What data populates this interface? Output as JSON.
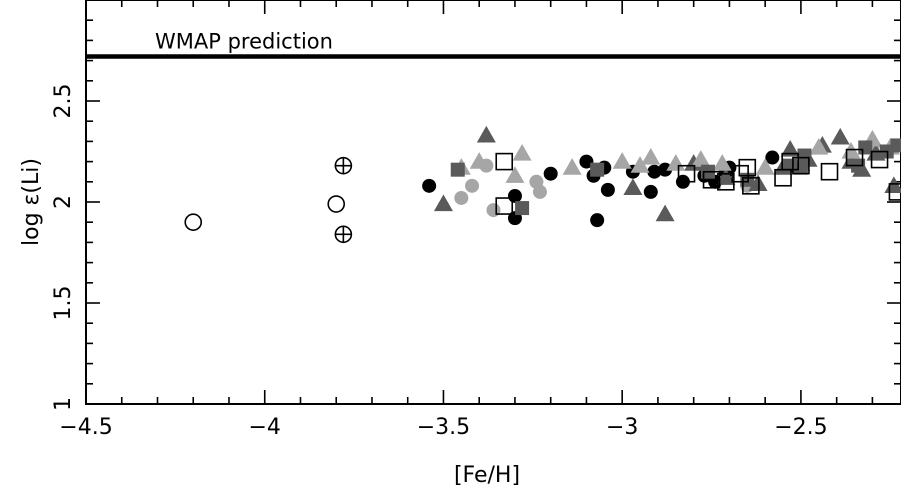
{
  "chart_data": {
    "type": "scatter",
    "xlabel": "[Fe/H]",
    "ylabel": "log ε(Li)",
    "xlim": [
      -4.5,
      -2.22
    ],
    "ylim": [
      1.0,
      3.0
    ],
    "x_ticks": [
      -4.5,
      -4,
      -3.5,
      -3,
      -2.5
    ],
    "x_tick_labels": [
      "−4.5",
      "−4",
      "−3.5",
      "−3",
      "−2.5"
    ],
    "y_ticks": [
      1,
      1.5,
      2,
      2.5
    ],
    "y_tick_labels": [
      "1",
      "1.5",
      "2",
      "2.5"
    ],
    "grid": false,
    "reference_lines": [
      {
        "y": 2.72,
        "label": "WMAP prediction"
      }
    ],
    "series": [
      {
        "marker": "filled-circle",
        "color": "#000000",
        "points": [
          [
            -3.54,
            2.08
          ],
          [
            -3.3,
            2.03
          ],
          [
            -3.3,
            1.92
          ],
          [
            -3.2,
            2.14
          ],
          [
            -3.1,
            2.2
          ],
          [
            -3.08,
            2.13
          ],
          [
            -3.05,
            2.17
          ],
          [
            -3.04,
            2.06
          ],
          [
            -3.07,
            1.91
          ],
          [
            -2.97,
            2.15
          ],
          [
            -2.92,
            2.05
          ],
          [
            -2.91,
            2.15
          ],
          [
            -2.88,
            2.16
          ],
          [
            -2.83,
            2.1
          ],
          [
            -2.77,
            2.13
          ],
          [
            -2.74,
            2.1
          ],
          [
            -2.71,
            2.15
          ],
          [
            -2.7,
            2.17
          ],
          [
            -2.58,
            2.22
          ]
        ]
      },
      {
        "marker": "filled-circle",
        "color": "#a6a6a6",
        "points": [
          [
            -3.45,
            2.02
          ],
          [
            -3.42,
            2.08
          ],
          [
            -3.38,
            2.18
          ],
          [
            -3.36,
            1.96
          ],
          [
            -3.24,
            2.1
          ],
          [
            -3.23,
            2.05
          ],
          [
            -2.65,
            2.08
          ],
          [
            -2.3,
            2.28
          ]
        ]
      },
      {
        "marker": "filled-triangle",
        "color": "#5a5a5a",
        "points": [
          [
            -3.5,
            1.99
          ],
          [
            -3.38,
            2.33
          ],
          [
            -2.97,
            2.07
          ],
          [
            -2.88,
            1.94
          ],
          [
            -2.8,
            2.19
          ],
          [
            -2.71,
            2.12
          ],
          [
            -2.62,
            2.09
          ],
          [
            -2.55,
            2.17
          ],
          [
            -2.53,
            2.26
          ],
          [
            -2.48,
            2.21
          ],
          [
            -2.44,
            2.28
          ],
          [
            -2.39,
            2.32
          ],
          [
            -2.36,
            2.2
          ],
          [
            -2.33,
            2.16
          ],
          [
            -2.29,
            2.24
          ],
          [
            -2.24,
            2.08
          ]
        ]
      },
      {
        "marker": "filled-triangle",
        "color": "#a6a6a6",
        "points": [
          [
            -3.45,
            2.17
          ],
          [
            -3.4,
            2.2
          ],
          [
            -3.3,
            2.13
          ],
          [
            -3.28,
            2.24
          ],
          [
            -3.14,
            2.17
          ],
          [
            -3.0,
            2.2
          ],
          [
            -2.95,
            2.18
          ],
          [
            -2.92,
            2.22
          ],
          [
            -2.85,
            2.19
          ],
          [
            -2.78,
            2.21
          ],
          [
            -2.72,
            2.19
          ],
          [
            -2.6,
            2.17
          ],
          [
            -2.5,
            2.19
          ],
          [
            -2.45,
            2.27
          ],
          [
            -2.36,
            2.25
          ],
          [
            -2.3,
            2.31
          ],
          [
            -2.25,
            2.27
          ]
        ]
      },
      {
        "marker": "filled-square",
        "color": "#5a5a5a",
        "points": [
          [
            -3.46,
            2.16
          ],
          [
            -3.28,
            1.97
          ],
          [
            -3.07,
            2.16
          ],
          [
            -2.76,
            2.15
          ],
          [
            -2.65,
            2.11
          ],
          [
            -2.53,
            2.18
          ],
          [
            -2.5,
            2.17
          ],
          [
            -2.49,
            2.23
          ],
          [
            -2.34,
            2.18
          ],
          [
            -2.32,
            2.27
          ],
          [
            -2.26,
            2.25
          ],
          [
            -2.23,
            2.28
          ]
        ]
      },
      {
        "marker": "open-square",
        "color": "#000000",
        "points": [
          [
            -3.33,
            2.2
          ],
          [
            -3.33,
            1.98
          ],
          [
            -2.82,
            2.14
          ],
          [
            -2.75,
            2.11
          ],
          [
            -2.71,
            2.1
          ],
          [
            -2.67,
            2.14
          ],
          [
            -2.65,
            2.17
          ],
          [
            -2.64,
            2.08
          ],
          [
            -2.55,
            2.12
          ],
          [
            -2.53,
            2.2
          ],
          [
            -2.5,
            2.18
          ],
          [
            -2.42,
            2.15
          ],
          [
            -2.35,
            2.22
          ],
          [
            -2.28,
            2.21
          ],
          [
            -2.23,
            2.05
          ]
        ]
      },
      {
        "marker": "open-circle",
        "color": "#000000",
        "points": [
          [
            -4.2,
            1.9
          ],
          [
            -3.8,
            1.99
          ]
        ]
      },
      {
        "marker": "circled-plus",
        "color": "#000000",
        "points": [
          [
            -3.78,
            2.18
          ],
          [
            -3.78,
            1.84
          ]
        ]
      }
    ]
  }
}
